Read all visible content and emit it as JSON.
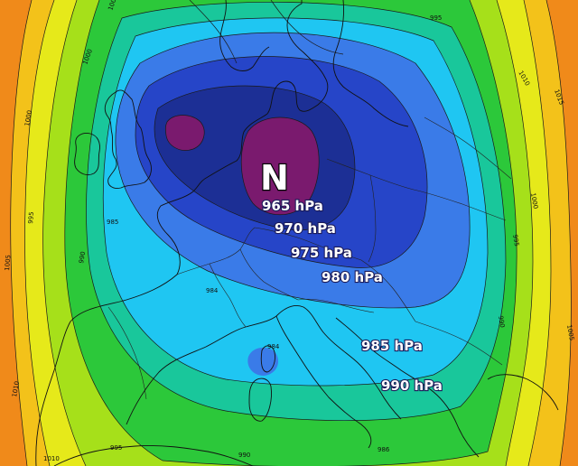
{
  "low_pressure_center": {
    "symbol": "N"
  },
  "pressure_labels": [
    {
      "text": "965 hPa"
    },
    {
      "text": "970 hPa"
    },
    {
      "text": "975 hPa"
    },
    {
      "text": "980 hPa"
    },
    {
      "text": "985 hPa"
    },
    {
      "text": "990 hPa"
    }
  ],
  "isobar_numbers": [
    "1010",
    "1005",
    "1000",
    "995",
    "990",
    "985",
    "984",
    "984",
    "990",
    "995",
    "1000",
    "1005",
    "1010",
    "1015",
    "1005",
    "1000",
    "995",
    "990",
    "986",
    "995",
    "1010"
  ],
  "colors": {
    "hpa_965": "#7a1a6e",
    "hpa_970": "#1c2f95",
    "hpa_975": "#2645c8",
    "hpa_980": "#3a7be8",
    "hpa_985": "#1fc6f2",
    "hpa_990": "#19c79b",
    "hpa_995": "#2cc83a",
    "hpa_1000": "#a6e01a",
    "hpa_1005": "#e6e91a",
    "hpa_1010": "#f3c21a",
    "hpa_1015": "#f08a1a"
  }
}
